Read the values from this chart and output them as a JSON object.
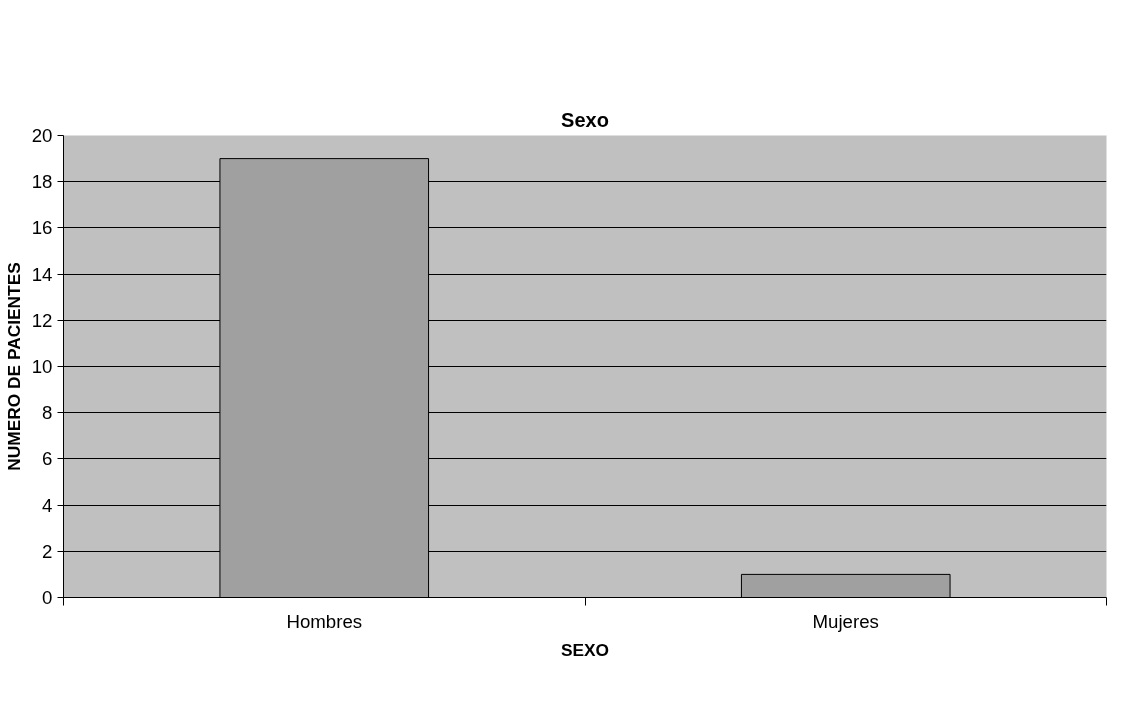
{
  "chart_data": {
    "type": "bar",
    "title": "Sexo",
    "xlabel": "SEXO",
    "ylabel": "NUMERO DE PACIENTES",
    "categories": [
      "Hombres",
      "Mujeres"
    ],
    "values": [
      19,
      1
    ],
    "color": "#a0a0a0",
    "ylim": [
      0,
      20
    ],
    "yticks": [
      0,
      2,
      4,
      6,
      8,
      10,
      12,
      14,
      16,
      18,
      20
    ],
    "grid": "y"
  }
}
